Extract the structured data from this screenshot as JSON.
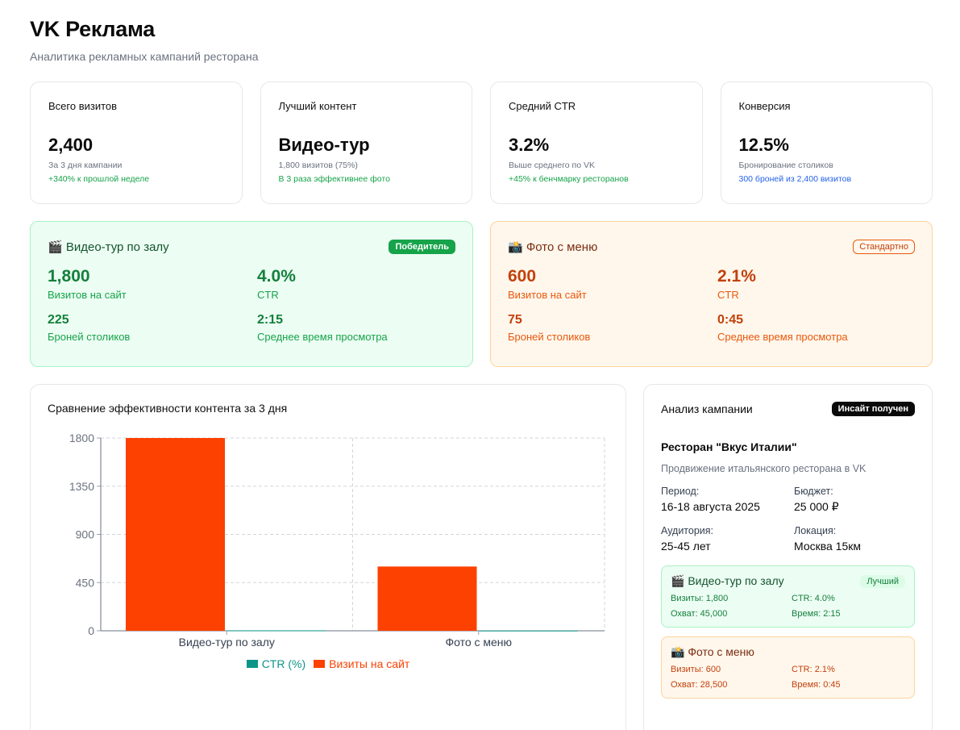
{
  "header": {
    "title": "VK Реклама",
    "subtitle": "Аналитика рекламных кампаний ресторана"
  },
  "stats": [
    {
      "label": "Всего визитов",
      "value": "2,400",
      "sub": "За 3 дня кампании",
      "note": "+340% к прошлой неделе",
      "note_color": "green"
    },
    {
      "label": "Лучший контент",
      "value": "Видео-тур",
      "sub": "1,800 визитов (75%)",
      "note": "В 3 раза эффективнее фото",
      "note_color": "green"
    },
    {
      "label": "Средний CTR",
      "value": "3.2%",
      "sub": "Выше среднего по VK",
      "note": "+45% к бенчмарку ресторанов",
      "note_color": "green"
    },
    {
      "label": "Конверсия",
      "value": "12.5%",
      "sub": "Бронирование столиков",
      "note": "300 броней из 2,400 визитов",
      "note_color": "blue"
    }
  ],
  "video_card": {
    "icon": "🎬",
    "title": "Видео-тур по залу",
    "badge": "Победитель",
    "visits": "1,800",
    "visits_label": "Визитов на сайт",
    "ctr": "4.0%",
    "ctr_label": "CTR",
    "bookings": "225",
    "bookings_label": "Броней столиков",
    "watch_time": "2:15",
    "watch_time_label": "Среднее время просмотра"
  },
  "photo_card": {
    "icon": "📸",
    "title": "Фото с меню",
    "badge": "Стандартно",
    "visits": "600",
    "visits_label": "Визитов на сайт",
    "ctr": "2.1%",
    "ctr_label": "CTR",
    "bookings": "75",
    "bookings_label": "Броней столиков",
    "watch_time": "0:45",
    "watch_time_label": "Среднее время просмотра"
  },
  "chart_data": {
    "type": "bar",
    "title": "Сравнение эффективности контента за 3 дня",
    "categories": [
      "Видео-тур по залу",
      "Фото с меню"
    ],
    "series": [
      {
        "name": "CTR (%)",
        "values": [
          4.0,
          2.1
        ],
        "color": "#0d9488"
      },
      {
        "name": "Визиты на сайт",
        "values": [
          1800,
          600
        ],
        "color": "#fc4100"
      }
    ],
    "yticks": [
      "0",
      "450",
      "900",
      "1350",
      "1800"
    ],
    "ylim": [
      0,
      1800
    ],
    "grid": true,
    "legend": "bottom"
  },
  "analysis": {
    "title": "Анализ кампании",
    "badge": "Инсайт получен",
    "restaurant": "Ресторан \"Вкус Италии\"",
    "description": "Продвижение итальянского ресторана в VK",
    "period_label": "Период:",
    "period": "16-18 августа 2025",
    "budget_label": "Бюджет:",
    "budget": "25 000 ₽",
    "audience_label": "Аудитория:",
    "audience": "25-45 лет",
    "location_label": "Локация:",
    "location": "Москва 15км",
    "video": {
      "icon": "🎬",
      "title": "Видео-тур по залу",
      "badge": "Лучший",
      "visits": "Визиты: 1,800",
      "ctr": "CTR: 4.0%",
      "reach": "Охват: 45,000",
      "time": "Время: 2:15"
    },
    "photo": {
      "icon": "📸",
      "title": "Фото с меню",
      "visits": "Визиты: 600",
      "ctr": "CTR: 2.1%",
      "reach": "Охват: 28,500",
      "time": "Время: 0:45"
    }
  },
  "colors": {
    "accent_green": "#16a34a",
    "accent_orange": "#ea580c",
    "bar_visits": "#fc4100",
    "bar_ctr": "#0d9488"
  }
}
